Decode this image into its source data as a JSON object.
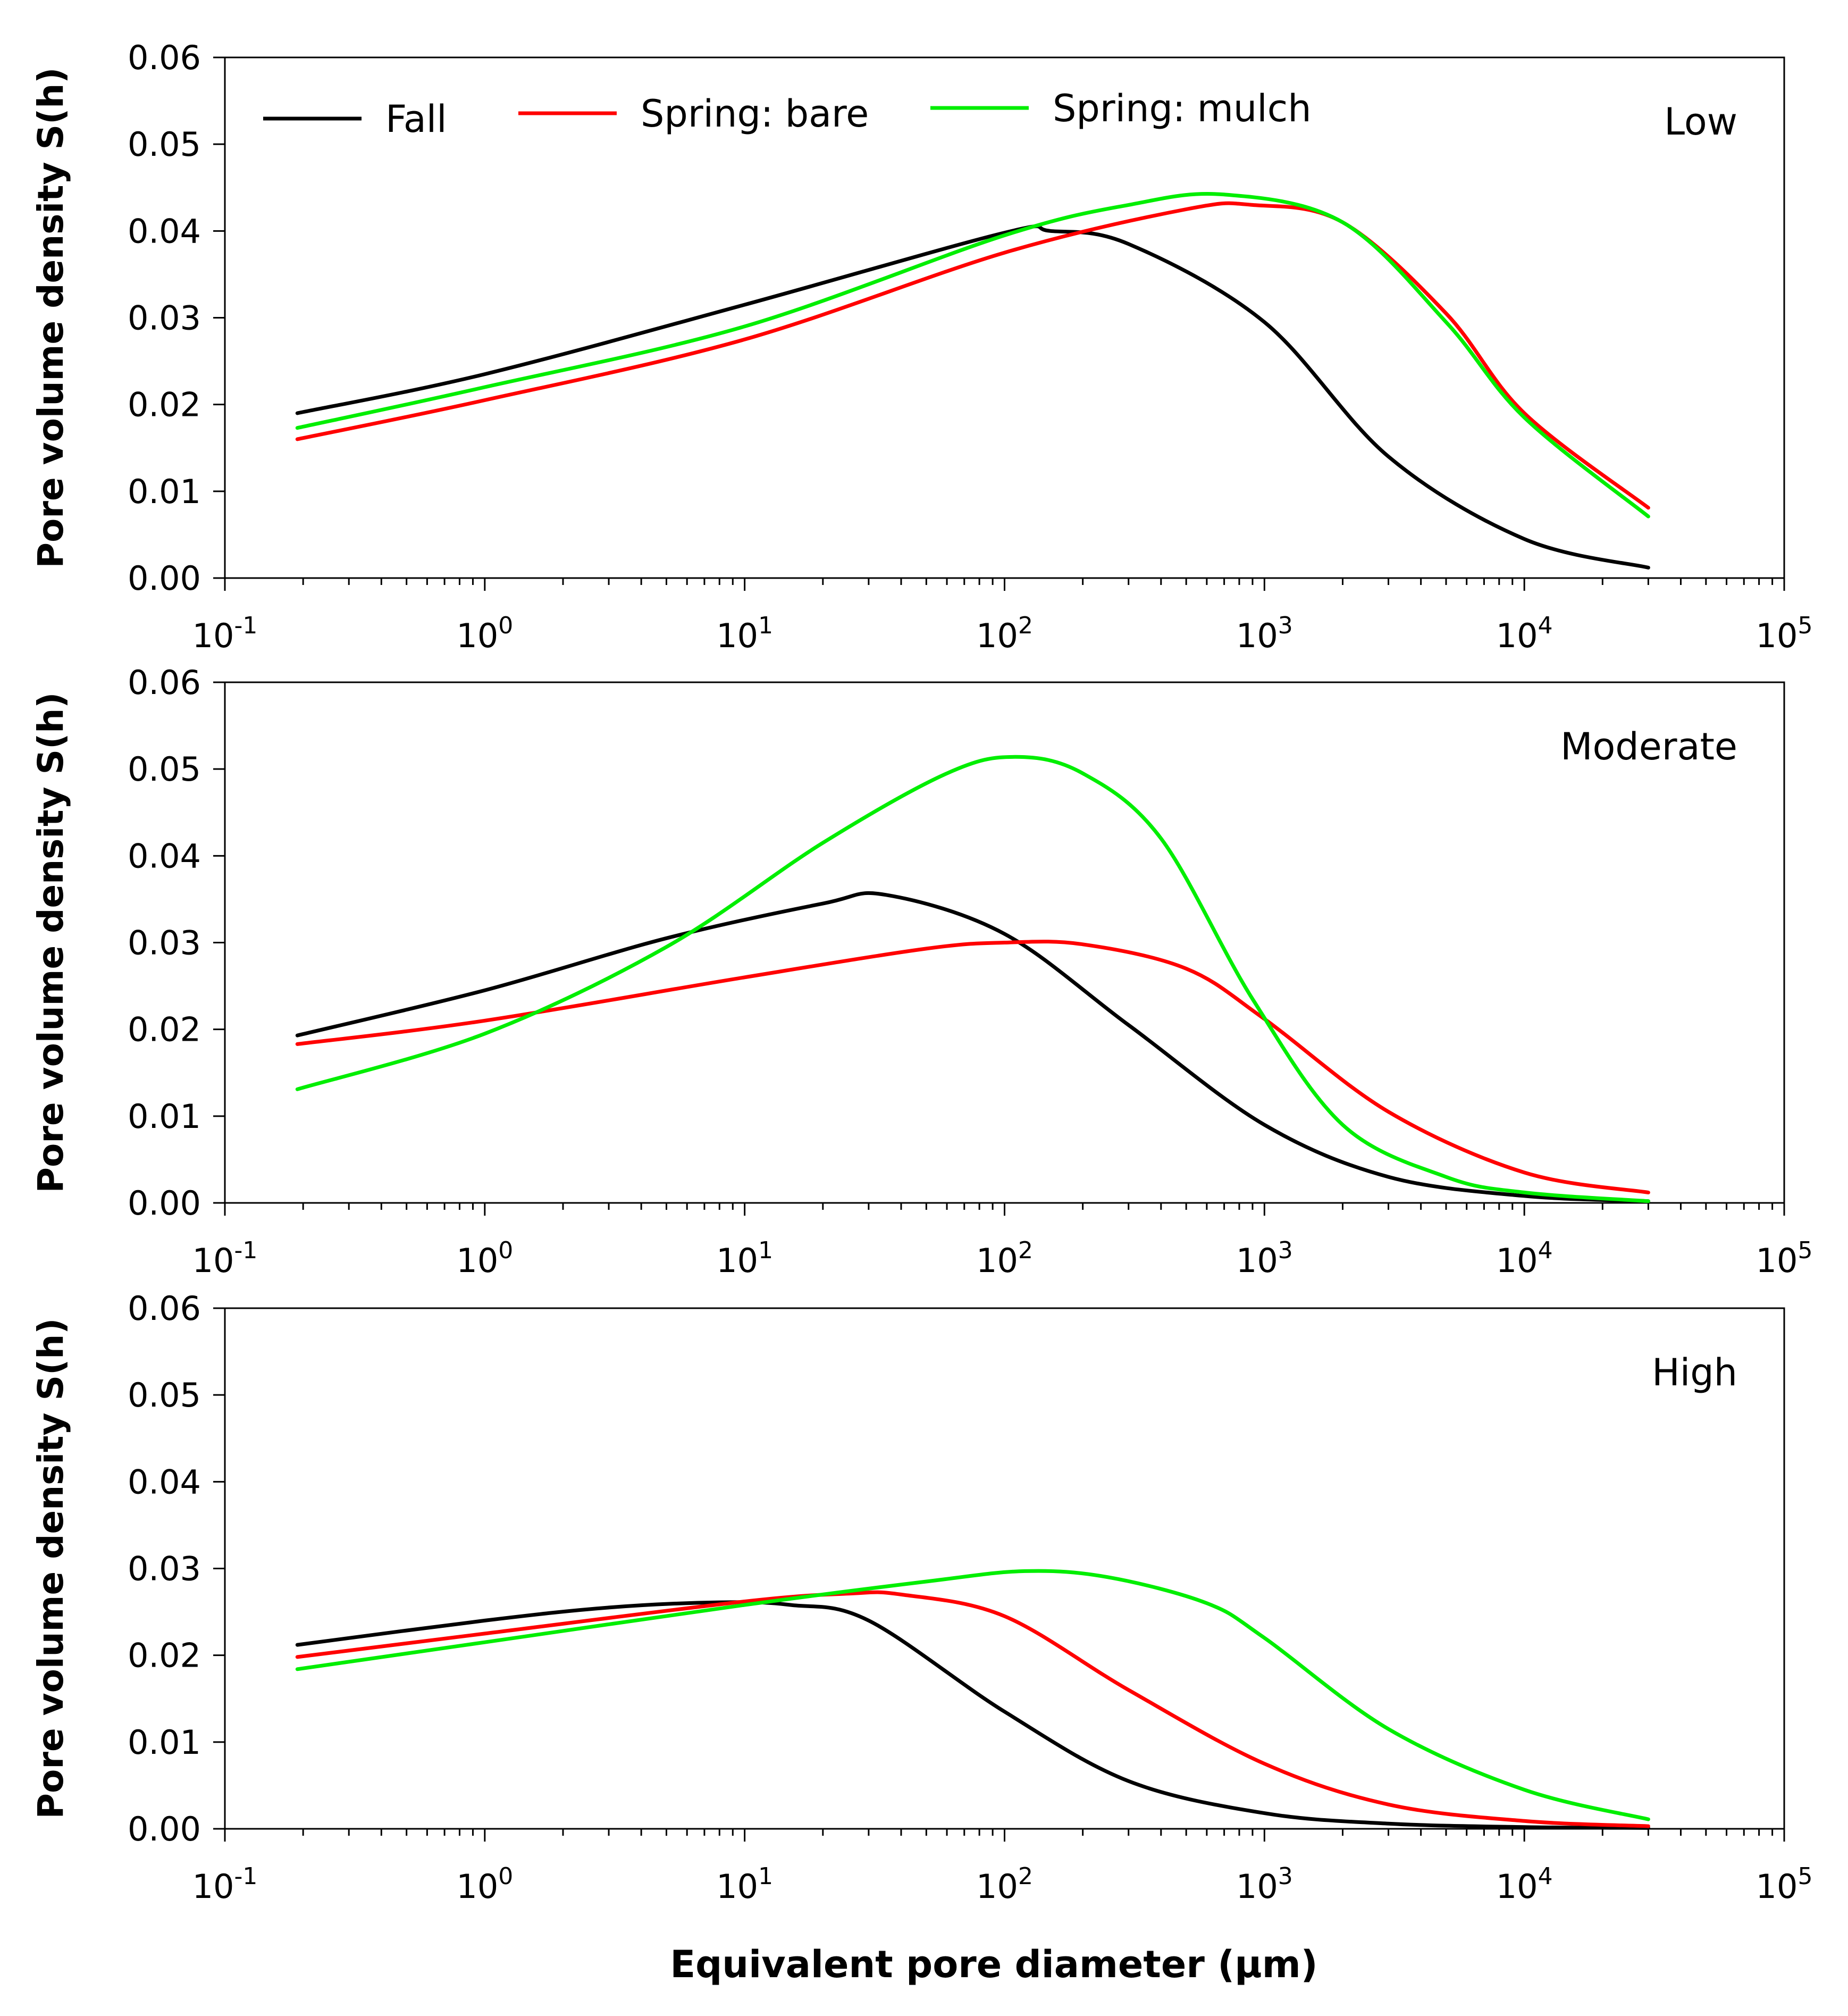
{
  "chart_data": [
    {
      "type": "line",
      "panel_label": "Low",
      "xscale": "log",
      "xlim": [
        0.1,
        100000
      ],
      "ylim": [
        0.0,
        0.06
      ],
      "ylabel": "Pore volume density S(h)",
      "yticks": [
        "0.00",
        "0.01",
        "0.02",
        "0.03",
        "0.04",
        "0.05",
        "0.06"
      ],
      "xticks": [
        {
          "base": "10",
          "exp": "-1"
        },
        {
          "base": "10",
          "exp": "0"
        },
        {
          "base": "10",
          "exp": "1"
        },
        {
          "base": "10",
          "exp": "2"
        },
        {
          "base": "10",
          "exp": "3"
        },
        {
          "base": "10",
          "exp": "4"
        },
        {
          "base": "10",
          "exp": "5"
        }
      ],
      "series": [
        {
          "name": "Fall",
          "color": "#000000",
          "x": [
            0.19,
            1,
            10,
            100,
            150,
            300,
            1000,
            3000,
            10000,
            30000
          ],
          "y": [
            0.019,
            0.0235,
            0.0315,
            0.0398,
            0.04,
            0.0385,
            0.0295,
            0.014,
            0.0045,
            0.0012
          ]
        },
        {
          "name": "Spring: bare",
          "color": "#ff0000",
          "x": [
            0.19,
            1,
            10,
            100,
            500,
            900,
            2000,
            5000,
            10000,
            30000
          ],
          "y": [
            0.016,
            0.0205,
            0.0275,
            0.0375,
            0.0425,
            0.043,
            0.041,
            0.0305,
            0.019,
            0.0081
          ]
        },
        {
          "name": "Spring: mulch",
          "color": "#00ee00",
          "x": [
            0.19,
            1,
            10,
            100,
            300,
            700,
            2000,
            5000,
            10000,
            30000
          ],
          "y": [
            0.0173,
            0.022,
            0.029,
            0.0395,
            0.043,
            0.0442,
            0.041,
            0.0295,
            0.0185,
            0.0071
          ]
        }
      ],
      "legend": [
        "Fall",
        "Spring: bare",
        "Spring: mulch"
      ]
    },
    {
      "type": "line",
      "panel_label": "Moderate",
      "xscale": "log",
      "xlim": [
        0.1,
        100000
      ],
      "ylim": [
        0.0,
        0.06
      ],
      "ylabel": "Pore volume density S(h)",
      "yticks": [
        "0.00",
        "0.01",
        "0.02",
        "0.03",
        "0.04",
        "0.05",
        "0.06"
      ],
      "xticks": [
        {
          "base": "10",
          "exp": "-1"
        },
        {
          "base": "10",
          "exp": "0"
        },
        {
          "base": "10",
          "exp": "1"
        },
        {
          "base": "10",
          "exp": "2"
        },
        {
          "base": "10",
          "exp": "3"
        },
        {
          "base": "10",
          "exp": "4"
        },
        {
          "base": "10",
          "exp": "5"
        }
      ],
      "series": [
        {
          "name": "Fall",
          "color": "#000000",
          "x": [
            0.19,
            1,
            5,
            20,
            35,
            100,
            300,
            1000,
            3000,
            10000,
            30000
          ],
          "y": [
            0.0193,
            0.0245,
            0.0305,
            0.0345,
            0.0355,
            0.031,
            0.0205,
            0.009,
            0.003,
            0.0008,
            0.0002
          ]
        },
        {
          "name": "Spring: bare",
          "color": "#ff0000",
          "x": [
            0.19,
            1,
            10,
            50,
            100,
            200,
            500,
            1000,
            3000,
            10000,
            30000
          ],
          "y": [
            0.0183,
            0.021,
            0.026,
            0.0293,
            0.03,
            0.0298,
            0.027,
            0.0212,
            0.0105,
            0.0035,
            0.0012
          ]
        },
        {
          "name": "Spring: mulch",
          "color": "#00ee00",
          "x": [
            0.19,
            1,
            5,
            20,
            60,
            110,
            200,
            400,
            900,
            2000,
            5000,
            10000,
            30000
          ],
          "y": [
            0.0131,
            0.0195,
            0.0295,
            0.0415,
            0.0495,
            0.0514,
            0.0495,
            0.042,
            0.0235,
            0.009,
            0.003,
            0.0012,
            0.0002
          ]
        }
      ],
      "legend": []
    },
    {
      "type": "line",
      "panel_label": "High",
      "xscale": "log",
      "xlim": [
        0.1,
        100000
      ],
      "ylim": [
        0.0,
        0.06
      ],
      "xlabel": "Equivalent pore diameter (μm)",
      "ylabel": "Pore volume density S(h)",
      "yticks": [
        "0.00",
        "0.01",
        "0.02",
        "0.03",
        "0.04",
        "0.05",
        "0.06"
      ],
      "xticks": [
        {
          "base": "10",
          "exp": "-1"
        },
        {
          "base": "10",
          "exp": "0"
        },
        {
          "base": "10",
          "exp": "1"
        },
        {
          "base": "10",
          "exp": "2"
        },
        {
          "base": "10",
          "exp": "3"
        },
        {
          "base": "10",
          "exp": "4"
        },
        {
          "base": "10",
          "exp": "5"
        }
      ],
      "series": [
        {
          "name": "Fall",
          "color": "#000000",
          "x": [
            0.19,
            1,
            3,
            8,
            15,
            30,
            100,
            300,
            1000,
            3000,
            10000,
            30000
          ],
          "y": [
            0.0212,
            0.024,
            0.0255,
            0.0261,
            0.0258,
            0.024,
            0.0135,
            0.0055,
            0.0018,
            0.0006,
            0.0002,
            0.0001
          ]
        },
        {
          "name": "Spring: bare",
          "color": "#ff0000",
          "x": [
            0.19,
            1,
            10,
            25,
            40,
            100,
            300,
            1000,
            3000,
            10000,
            30000
          ],
          "y": [
            0.0198,
            0.0225,
            0.0262,
            0.0271,
            0.027,
            0.0245,
            0.016,
            0.0075,
            0.0028,
            0.0009,
            0.0003
          ]
        },
        {
          "name": "Spring: mulch",
          "color": "#00ee00",
          "x": [
            0.19,
            1,
            10,
            50,
            120,
            250,
            600,
            1000,
            3000,
            10000,
            30000
          ],
          "y": [
            0.0184,
            0.0215,
            0.0258,
            0.0285,
            0.0297,
            0.029,
            0.026,
            0.022,
            0.0115,
            0.0045,
            0.0011
          ]
        }
      ],
      "legend": []
    }
  ]
}
